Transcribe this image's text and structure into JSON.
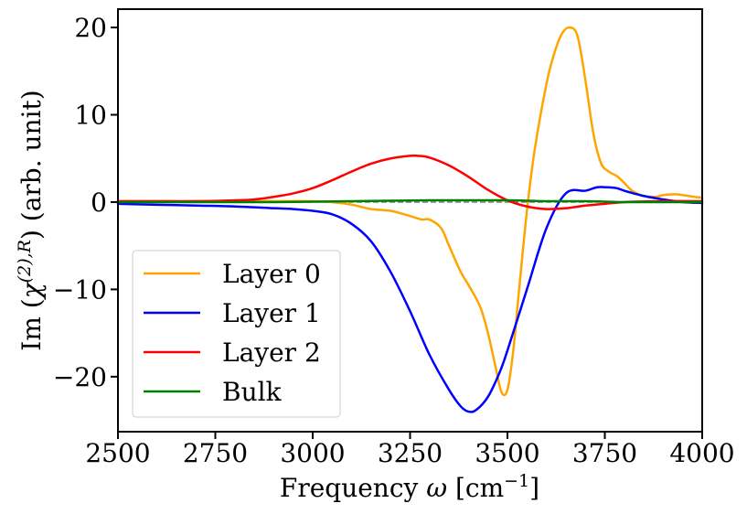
{
  "chart_data": {
    "type": "line",
    "title": "",
    "xlabel": "Frequency ω [cm⁻¹]",
    "xlabel_main": "Frequency",
    "xlabel_omega": "ω",
    "xlabel_unit_open": "[cm",
    "xlabel_unit_sup": "−1",
    "xlabel_unit_close": "]",
    "ylabel": "Im (χ^(2),R) (arb. unit)",
    "ylabel_pre": "Im (",
    "ylabel_chi": "χ",
    "ylabel_sup": "(2),R",
    "ylabel_post": ") (arb. unit)",
    "xlim": [
      2500,
      4000
    ],
    "ylim": [
      -26.3,
      22.1
    ],
    "xticks": [
      2500,
      2750,
      3000,
      3250,
      3500,
      3750,
      4000
    ],
    "xtick_labels": [
      "2500",
      "2750",
      "3000",
      "3250",
      "3500",
      "3750",
      "4000"
    ],
    "yticks": [
      -20,
      -10,
      0,
      10,
      20
    ],
    "ytick_labels": [
      "−20",
      "−10",
      "0",
      "10",
      "20"
    ],
    "zero_line": {
      "style": "dashed",
      "color": "#808080",
      "y": 0
    },
    "legend_position": "lower-left",
    "series": [
      {
        "name": "Layer 0",
        "color": "#FFA500",
        "x": [
          2500,
          2600,
          2700,
          2800,
          2900,
          3000,
          3050,
          3100,
          3150,
          3200,
          3250,
          3280,
          3300,
          3330,
          3350,
          3380,
          3400,
          3430,
          3450,
          3470,
          3485,
          3500,
          3515,
          3530,
          3550,
          3570,
          3600,
          3620,
          3640,
          3660,
          3680,
          3700,
          3720,
          3740,
          3760,
          3780,
          3800,
          3820,
          3850,
          3880,
          3900,
          3930,
          3950,
          3980,
          4000
        ],
        "y": [
          0.1,
          0.1,
          0.1,
          0.1,
          0.1,
          0.1,
          0.0,
          -0.3,
          -0.8,
          -1.0,
          -1.6,
          -2.0,
          -2.0,
          -3.0,
          -5.0,
          -8.0,
          -9.5,
          -12.0,
          -15.0,
          -19.0,
          -21.8,
          -21.5,
          -17.0,
          -10.0,
          -1.0,
          6.0,
          13.5,
          17.0,
          19.3,
          20.0,
          19.0,
          14.0,
          8.0,
          4.5,
          3.5,
          3.0,
          2.2,
          1.3,
          0.7,
          0.6,
          0.8,
          0.9,
          0.8,
          0.6,
          0.5
        ]
      },
      {
        "name": "Layer 1",
        "color": "#0000FF",
        "x": [
          2500,
          2600,
          2700,
          2800,
          2900,
          2950,
          3000,
          3050,
          3100,
          3150,
          3200,
          3250,
          3300,
          3350,
          3380,
          3400,
          3420,
          3450,
          3480,
          3500,
          3550,
          3600,
          3650,
          3700,
          3730,
          3750,
          3780,
          3800,
          3850,
          3900,
          3950,
          4000
        ],
        "y": [
          -0.2,
          -0.3,
          -0.4,
          -0.5,
          -0.7,
          -0.8,
          -1.0,
          -1.4,
          -2.5,
          -4.5,
          -8.0,
          -12.5,
          -17.5,
          -21.5,
          -23.4,
          -24.0,
          -23.8,
          -22.3,
          -19.5,
          -17.0,
          -10.0,
          -3.0,
          1.0,
          1.3,
          1.7,
          1.7,
          1.6,
          1.3,
          0.7,
          0.3,
          0.0,
          -0.1
        ]
      },
      {
        "name": "Layer 2",
        "color": "#FF0000",
        "x": [
          2500,
          2600,
          2700,
          2800,
          2850,
          2900,
          2950,
          3000,
          3050,
          3100,
          3150,
          3200,
          3250,
          3270,
          3300,
          3350,
          3400,
          3450,
          3500,
          3550,
          3600,
          3650,
          3700,
          3750,
          3800,
          3900,
          4000
        ],
        "y": [
          0.1,
          0.1,
          0.1,
          0.2,
          0.3,
          0.6,
          1.0,
          1.6,
          2.5,
          3.5,
          4.4,
          5.0,
          5.3,
          5.3,
          5.1,
          4.2,
          2.9,
          1.4,
          0.2,
          -0.5,
          -0.8,
          -0.7,
          -0.4,
          -0.2,
          0.0,
          0.1,
          0.1
        ]
      },
      {
        "name": "Bulk",
        "color": "#008000",
        "x": [
          2500,
          2700,
          2900,
          3100,
          3300,
          3400,
          3500,
          3600,
          3700,
          3800,
          3900,
          4000
        ],
        "y": [
          0.0,
          0.0,
          0.0,
          0.1,
          0.2,
          0.2,
          0.2,
          0.1,
          0.1,
          0.0,
          0.0,
          0.0
        ]
      }
    ]
  }
}
